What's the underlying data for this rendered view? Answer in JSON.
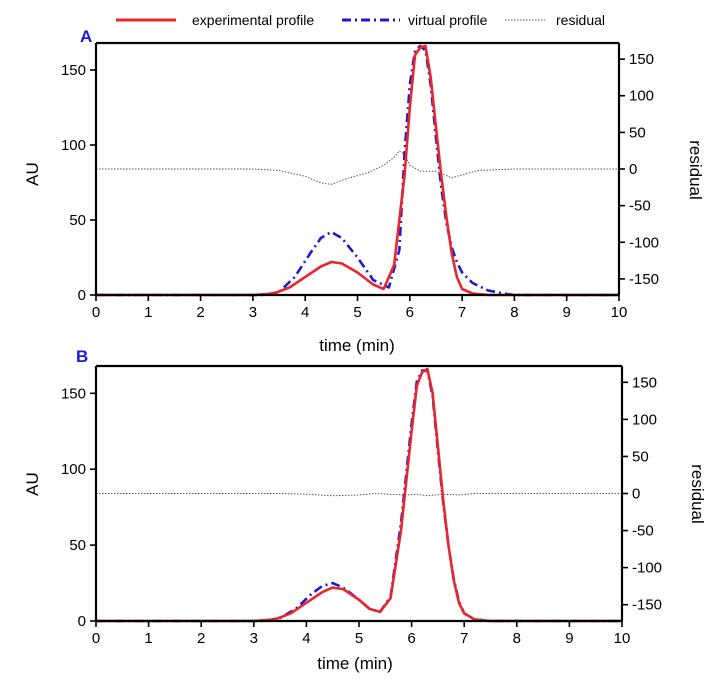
{
  "legend": {
    "items": [
      {
        "label": "experimental profile",
        "color": "#e8262b",
        "style": "solid"
      },
      {
        "label": "virtual profile",
        "color": "#1c1ccf",
        "style": "dashdot"
      },
      {
        "label": "residual",
        "color": "#555555",
        "style": "dotted"
      }
    ]
  },
  "chart_data": [
    {
      "type": "line",
      "panel_label": "A",
      "xlabel": "time (min)",
      "ylabel": "AU",
      "y2label": "residual",
      "xlim": [
        0,
        10
      ],
      "ylim": [
        0,
        168
      ],
      "y2lim": [
        -172,
        172
      ],
      "xticks": [
        0,
        1,
        2,
        3,
        4,
        5,
        6,
        7,
        8,
        9,
        10
      ],
      "yticks": [
        0,
        50,
        100,
        150
      ],
      "y2ticks": [
        -150,
        -100,
        -50,
        0,
        50,
        100,
        150
      ],
      "series": [
        {
          "name": "experimental profile",
          "axis": "left",
          "color": "#e8262b",
          "x": [
            0,
            3.0,
            3.4,
            3.7,
            4.0,
            4.3,
            4.5,
            4.7,
            5.0,
            5.3,
            5.5,
            5.7,
            5.9,
            6.0,
            6.1,
            6.2,
            6.3,
            6.4,
            6.5,
            6.6,
            6.7,
            6.8,
            6.9,
            7.0,
            7.2,
            7.5,
            10
          ],
          "y": [
            0,
            0,
            1,
            5,
            12,
            19,
            22,
            21,
            15,
            7,
            4,
            20,
            80,
            125,
            160,
            165,
            166,
            145,
            112,
            80,
            52,
            28,
            12,
            4,
            1,
            0,
            0
          ]
        },
        {
          "name": "virtual profile",
          "axis": "left",
          "color": "#1c1ccf",
          "x": [
            0,
            3.2,
            3.5,
            3.8,
            4.1,
            4.3,
            4.5,
            4.7,
            5.0,
            5.3,
            5.6,
            5.8,
            5.9,
            6.0,
            6.1,
            6.2,
            6.3,
            6.4,
            6.5,
            6.6,
            6.7,
            6.8,
            6.9,
            7.0,
            7.2,
            7.5,
            7.8,
            8.0,
            10
          ],
          "y": [
            0,
            0,
            2,
            12,
            28,
            38,
            42,
            38,
            25,
            10,
            5,
            30,
            95,
            140,
            163,
            166,
            163,
            140,
            105,
            72,
            48,
            32,
            22,
            15,
            8,
            3,
            1,
            0,
            0
          ]
        },
        {
          "name": "residual",
          "axis": "right",
          "color": "#555555",
          "x": [
            0,
            3.0,
            3.5,
            4.0,
            4.3,
            4.5,
            4.8,
            5.2,
            5.5,
            5.7,
            5.8,
            5.9,
            6.0,
            6.2,
            6.5,
            6.8,
            7.0,
            7.3,
            8.0,
            10
          ],
          "y": [
            0,
            0,
            -2,
            -10,
            -19,
            -21,
            -13,
            -5,
            5,
            16,
            25,
            20,
            5,
            -3,
            -3,
            -12,
            -8,
            -2,
            0,
            0
          ]
        }
      ]
    },
    {
      "type": "line",
      "panel_label": "B",
      "xlabel": "time (min)",
      "ylabel": "AU",
      "y2label": "residual",
      "xlim": [
        0,
        10
      ],
      "ylim": [
        0,
        168
      ],
      "y2lim": [
        -172,
        172
      ],
      "xticks": [
        0,
        1,
        2,
        3,
        4,
        5,
        6,
        7,
        8,
        9,
        10
      ],
      "yticks": [
        0,
        50,
        100,
        150
      ],
      "y2ticks": [
        -150,
        -100,
        -50,
        0,
        50,
        100,
        150
      ],
      "series": [
        {
          "name": "experimental profile",
          "axis": "left",
          "color": "#e8262b",
          "x": [
            0,
            3.0,
            3.4,
            3.7,
            4.0,
            4.3,
            4.5,
            4.7,
            5.0,
            5.2,
            5.4,
            5.6,
            5.8,
            6.0,
            6.1,
            6.2,
            6.3,
            6.4,
            6.5,
            6.6,
            6.7,
            6.8,
            6.9,
            7.0,
            7.2,
            7.5,
            10
          ],
          "y": [
            0,
            0,
            1,
            5,
            12,
            19,
            22,
            21,
            14,
            8,
            6,
            15,
            60,
            125,
            155,
            164,
            166,
            150,
            115,
            80,
            50,
            27,
            12,
            5,
            1,
            0,
            0
          ]
        },
        {
          "name": "virtual profile",
          "axis": "left",
          "color": "#1c1ccf",
          "x": [
            0,
            3.2,
            3.5,
            3.8,
            4.1,
            4.3,
            4.5,
            4.7,
            5.0,
            5.2,
            5.4,
            5.6,
            5.8,
            6.0,
            6.1,
            6.2,
            6.3,
            6.4,
            6.5,
            6.6,
            6.7,
            6.8,
            6.9,
            7.0,
            7.2,
            7.5,
            10
          ],
          "y": [
            0,
            0,
            2,
            8,
            18,
            23,
            25,
            22,
            14,
            8,
            6,
            16,
            65,
            130,
            158,
            165,
            165,
            148,
            112,
            78,
            50,
            28,
            13,
            5,
            1,
            0,
            0
          ]
        },
        {
          "name": "residual",
          "axis": "right",
          "color": "#555555",
          "x": [
            0,
            3.5,
            4.0,
            4.5,
            5.0,
            5.3,
            5.6,
            5.9,
            6.1,
            6.3,
            6.6,
            6.9,
            7.2,
            8.0,
            10
          ],
          "y": [
            0,
            0,
            -1,
            -3,
            -2,
            0,
            -1,
            -2,
            -1,
            -3,
            -1,
            -2,
            0,
            0,
            0
          ]
        }
      ]
    }
  ]
}
